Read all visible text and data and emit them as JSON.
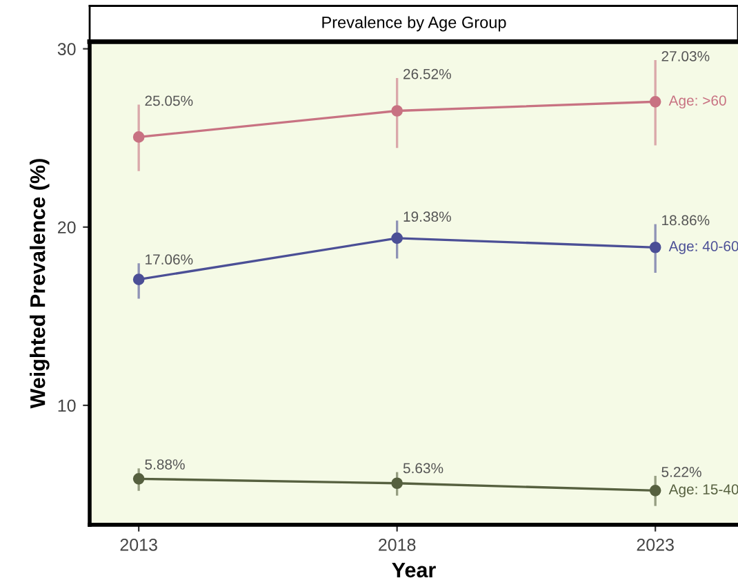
{
  "chart_data": {
    "type": "line",
    "title": "Prevalence by Age Group",
    "xlabel": "Year",
    "ylabel": "Weighted Prevalence (%)",
    "x": [
      2013,
      2018,
      2023
    ],
    "xlim": [
      2012.05,
      2024.6
    ],
    "xticks": [
      2013,
      2018,
      2023
    ],
    "ylim": [
      3.3,
      30.4
    ],
    "yticks": [
      10,
      20,
      30
    ],
    "grid": false,
    "legend": false,
    "marker": "circle",
    "line_style": "solid",
    "series": [
      {
        "name": "Age: >60",
        "color": "#c87282",
        "values": [
          25.05,
          26.52,
          27.03
        ],
        "errors": [
          [
            23.2,
            26.8
          ],
          [
            24.5,
            28.3
          ],
          [
            24.65,
            29.3
          ]
        ],
        "value_labels": [
          "25.05%",
          "26.52%",
          "27.03%"
        ]
      },
      {
        "name": "Age: 40-60",
        "color": "#4b4f96",
        "values": [
          17.06,
          19.38,
          18.86
        ],
        "errors": [
          [
            16.05,
            17.9
          ],
          [
            18.3,
            20.3
          ],
          [
            17.5,
            20.1
          ]
        ],
        "value_labels": [
          "17.06%",
          "19.38%",
          "18.86%"
        ]
      },
      {
        "name": "Age: 15-40",
        "color": "#56603f",
        "values": [
          5.88,
          5.63,
          5.22
        ],
        "errors": [
          [
            5.27,
            6.4
          ],
          [
            5.0,
            6.19
          ],
          [
            4.42,
            5.98
          ]
        ],
        "value_labels": [
          "5.88%",
          "5.63%",
          "5.22%"
        ]
      }
    ]
  }
}
